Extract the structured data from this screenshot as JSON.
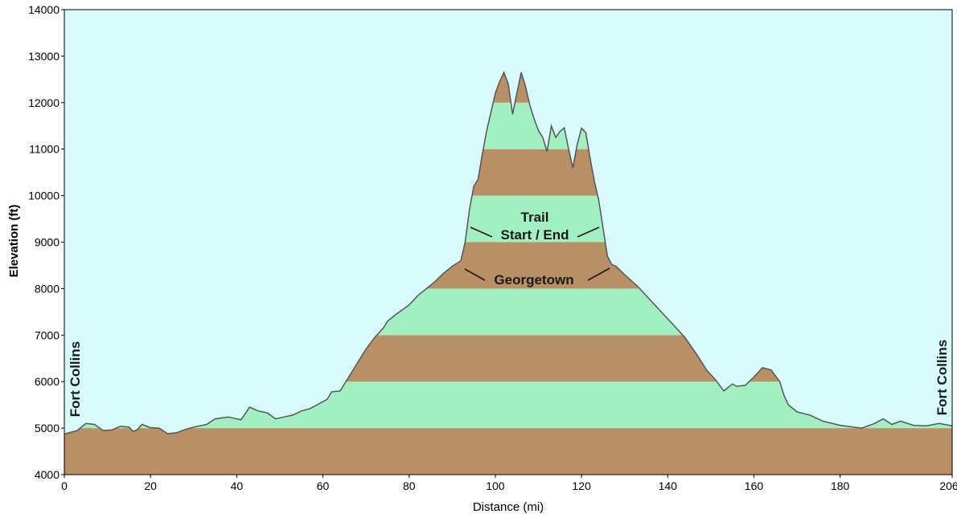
{
  "chart_data": {
    "type": "area",
    "xlabel": "Distance   (mi)",
    "ylabel": "Elevation (ft)",
    "xlim": [
      0,
      206
    ],
    "ylim": [
      4000,
      14000
    ],
    "x_ticks": [
      0,
      20,
      40,
      60,
      80,
      100,
      120,
      140,
      160,
      180,
      206
    ],
    "y_ticks": [
      4000,
      5000,
      6000,
      7000,
      8000,
      9000,
      10000,
      11000,
      12000,
      13000,
      14000
    ],
    "grid": false,
    "colors": {
      "background": "#d8fafa",
      "band_brown": "#b98f65",
      "band_green": "#a2f0c2",
      "outline": "#555555"
    },
    "profile": {
      "x": [
        0,
        3,
        5,
        7,
        9,
        11,
        13,
        15,
        16,
        17,
        18,
        20,
        22,
        24,
        26,
        28,
        30,
        33,
        35,
        38,
        41,
        43,
        45,
        47,
        49,
        51,
        53,
        55,
        57,
        59,
        61,
        62,
        64,
        66,
        68,
        70,
        72,
        74,
        75,
        77,
        80,
        82,
        84,
        86,
        88,
        90,
        92,
        93,
        94,
        95,
        96,
        97,
        98,
        99,
        100,
        101,
        102,
        103,
        104,
        105,
        106,
        107,
        108,
        109,
        110,
        111,
        112,
        113,
        114,
        115,
        116,
        117,
        118,
        119,
        120,
        121,
        122,
        123,
        124,
        125,
        126,
        127,
        128,
        130,
        133,
        135,
        138,
        141,
        144,
        147,
        149,
        151,
        153,
        155,
        156,
        158,
        160,
        162,
        164,
        166,
        167,
        168,
        170,
        173,
        176,
        180,
        185,
        188,
        190,
        192,
        194,
        197,
        200,
        203,
        206
      ],
      "y": [
        4870,
        4950,
        5100,
        5080,
        4950,
        4960,
        5040,
        5020,
        4930,
        4970,
        5080,
        5010,
        5000,
        4880,
        4900,
        4970,
        5020,
        5080,
        5200,
        5240,
        5180,
        5450,
        5370,
        5330,
        5200,
        5240,
        5280,
        5370,
        5420,
        5520,
        5620,
        5780,
        5800,
        6100,
        6400,
        6700,
        6950,
        7150,
        7300,
        7450,
        7650,
        7850,
        8000,
        8150,
        8330,
        8480,
        8600,
        9000,
        9700,
        10200,
        10350,
        10900,
        11400,
        11800,
        12200,
        12450,
        12650,
        12400,
        11750,
        12200,
        12650,
        12350,
        11950,
        11650,
        11400,
        11250,
        10950,
        11500,
        11250,
        11380,
        11460,
        11000,
        10600,
        11100,
        11450,
        11350,
        10800,
        10300,
        9900,
        9300,
        8700,
        8520,
        8480,
        8300,
        8050,
        7850,
        7550,
        7250,
        6950,
        6550,
        6250,
        6050,
        5800,
        5950,
        5900,
        5920,
        6100,
        6300,
        6250,
        6000,
        5700,
        5500,
        5350,
        5280,
        5150,
        5060,
        5000,
        5100,
        5200,
        5080,
        5150,
        5060,
        5050,
        5100,
        5050
      ]
    },
    "bands": [
      {
        "from": 4000,
        "to": 5000,
        "color": "brown"
      },
      {
        "from": 5000,
        "to": 6000,
        "color": "green"
      },
      {
        "from": 6000,
        "to": 7000,
        "color": "brown"
      },
      {
        "from": 7000,
        "to": 8000,
        "color": "green"
      },
      {
        "from": 8000,
        "to": 9000,
        "color": "brown"
      },
      {
        "from": 9000,
        "to": 10000,
        "color": "green"
      },
      {
        "from": 10000,
        "to": 11000,
        "color": "brown"
      },
      {
        "from": 11000,
        "to": 12000,
        "color": "green"
      },
      {
        "from": 12000,
        "to": 13000,
        "color": "brown"
      },
      {
        "from": 13000,
        "to": 14000,
        "color": "green"
      }
    ],
    "annotations": {
      "trail_line1": "Trail",
      "trail_line2": "Start / End",
      "georgetown": "Georgetown",
      "fort_collins_left": "Fort Collins",
      "fort_collins_right": "Fort Collins"
    }
  }
}
